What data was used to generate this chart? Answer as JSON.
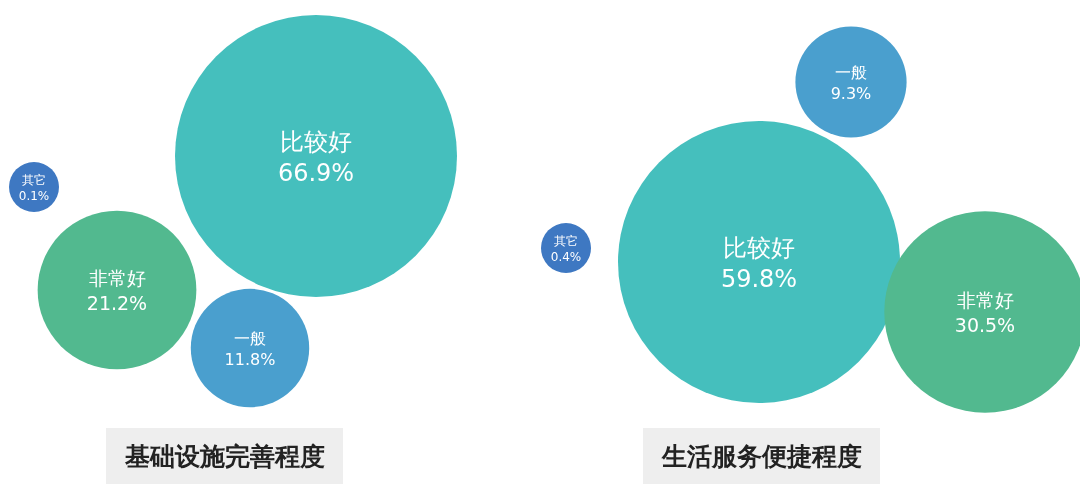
{
  "chart_data": [
    {
      "type": "other",
      "title": "基础设施完善程度",
      "categories": [
        "比较好",
        "非常好",
        "一般",
        "其它"
      ],
      "values": [
        66.9,
        21.2,
        11.8,
        0.1
      ],
      "value_labels": [
        "66.9%",
        "21.2%",
        "11.8%",
        "0.1%"
      ],
      "colors": [
        "#45bfbd",
        "#52b98f",
        "#4a9fce",
        "#3e78c2"
      ]
    },
    {
      "type": "other",
      "title": "生活服务便捷程度",
      "categories": [
        "比较好",
        "非常好",
        "一般",
        "其它"
      ],
      "values": [
        59.8,
        30.5,
        9.3,
        0.4
      ],
      "value_labels": [
        "59.8%",
        "30.5%",
        "9.3%",
        "0.4%"
      ],
      "colors": [
        "#45bfbd",
        "#52b98f",
        "#4a9fce",
        "#3e78c2"
      ]
    }
  ]
}
